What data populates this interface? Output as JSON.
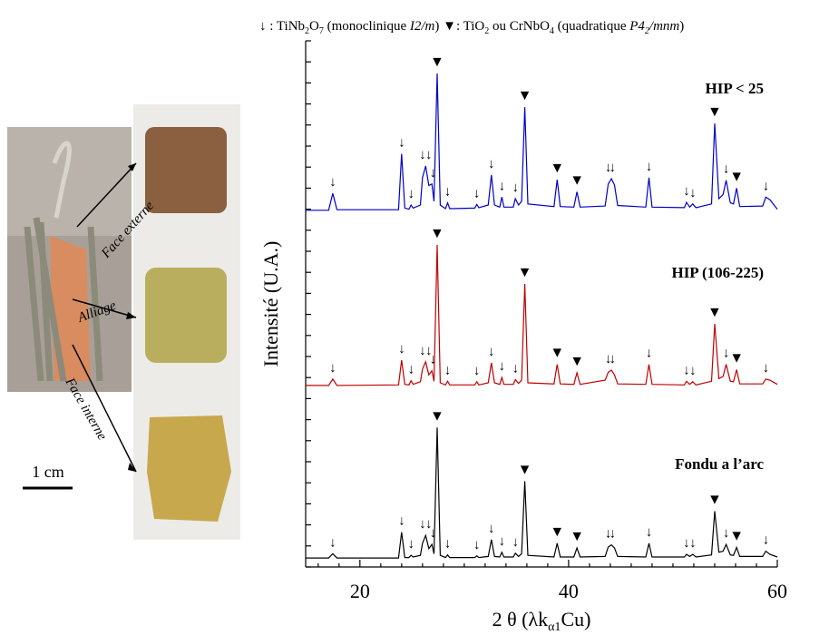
{
  "chart_data": {
    "type": "line",
    "note": [
      "↓ : TiNb",
      "2",
      "O",
      "7",
      " (monoclinique ",
      "I2/m",
      ") ▼: TiO",
      "2",
      " ou CrNbO",
      "4",
      " (quadratique ",
      "P4",
      "2",
      "/mnm",
      ")"
    ],
    "xlabel": [
      "2 θ (λk",
      "α1",
      "Cu)"
    ],
    "ylabel": "Intensité  (U.A.)",
    "xlim": [
      14.8,
      60
    ],
    "xticks": [
      20,
      40,
      60
    ],
    "xminorticks": [
      16,
      18,
      22,
      24,
      26,
      28,
      30,
      32,
      34,
      36,
      38,
      42,
      44,
      46,
      48,
      50,
      52,
      54,
      56,
      58
    ],
    "ylim": [
      0,
      100
    ],
    "yticks": [
      0,
      4,
      8,
      12,
      16,
      20,
      24,
      28,
      32,
      36,
      40,
      44,
      48,
      52,
      56,
      60,
      64,
      68,
      72,
      76,
      80,
      84,
      88,
      92,
      96,
      100
    ],
    "x": [
      14.8,
      17.0,
      17.4,
      17.8,
      23.7,
      24.0,
      24.3,
      24.7,
      24.9,
      25.1,
      25.8,
      26.0,
      26.3,
      26.6,
      26.9,
      27.1,
      27.4,
      27.7,
      28.2,
      28.4,
      28.6,
      31.0,
      31.2,
      31.4,
      32.3,
      32.6,
      32.9,
      33.4,
      33.6,
      33.8,
      34.7,
      34.9,
      35.2,
      35.5,
      35.8,
      36.1,
      38.6,
      38.9,
      39.2,
      40.5,
      40.8,
      41.1,
      43.5,
      43.8,
      44.1,
      44.4,
      44.7,
      47.4,
      47.7,
      48.0,
      51.1,
      51.3,
      51.6,
      51.9,
      52.2,
      53.7,
      54.0,
      54.4,
      54.8,
      55.1,
      55.5,
      55.8,
      56.1,
      56.4,
      58.6,
      58.9,
      59.3,
      60
    ],
    "series": [
      {
        "name": "HIP < 25",
        "color": "#0000c8",
        "values": [
          67.8,
          67.8,
          71.0,
          67.9,
          67.9,
          78.5,
          68.2,
          68.0,
          68.8,
          68.2,
          68.8,
          74.0,
          76.2,
          72.5,
          72.8,
          69.5,
          93.8,
          68.8,
          68.1,
          69.2,
          68.1,
          68.2,
          68.9,
          68.3,
          68.8,
          74.5,
          68.8,
          68.4,
          70.3,
          68.4,
          68.4,
          70.0,
          68.8,
          69.5,
          87.4,
          69.0,
          68.5,
          73.6,
          68.5,
          68.4,
          71.3,
          68.4,
          68.6,
          72.8,
          73.8,
          72.6,
          68.7,
          68.4,
          74.0,
          68.4,
          68.3,
          69.3,
          68.4,
          69.0,
          68.3,
          69.0,
          84.3,
          70.0,
          70.8,
          73.5,
          69.2,
          69.0,
          72.0,
          68.5,
          68.6,
          70.3,
          69.8,
          68.0
        ]
      },
      {
        "name": "HIP (106-225)",
        "color": "#c00000",
        "values": [
          34.5,
          34.5,
          35.7,
          34.5,
          34.6,
          39.3,
          34.7,
          34.6,
          35.4,
          34.7,
          35.2,
          37.6,
          39.0,
          36.5,
          37.3,
          35.3,
          61.2,
          35.0,
          34.6,
          35.3,
          34.6,
          34.6,
          35.2,
          34.6,
          35.0,
          38.8,
          35.0,
          34.7,
          36.0,
          34.7,
          34.7,
          35.6,
          34.9,
          35.5,
          53.8,
          35.0,
          34.8,
          38.5,
          34.8,
          34.7,
          36.9,
          34.7,
          35.5,
          37.0,
          37.4,
          36.5,
          34.8,
          34.7,
          38.5,
          34.7,
          34.6,
          35.3,
          34.7,
          35.2,
          34.6,
          35.3,
          46.2,
          35.8,
          36.2,
          38.5,
          35.3,
          35.2,
          37.5,
          34.8,
          34.8,
          35.7,
          35.5,
          34.7
        ]
      },
      {
        "name": "Fondu a l’arc",
        "color": "#000000",
        "values": [
          1.7,
          1.7,
          2.5,
          1.7,
          1.7,
          6.6,
          1.8,
          1.8,
          2.2,
          1.9,
          2.2,
          4.5,
          6.0,
          3.5,
          4.3,
          2.5,
          26.5,
          2.2,
          1.8,
          2.3,
          1.8,
          1.8,
          2.1,
          1.8,
          2.0,
          5.2,
          2.0,
          1.9,
          2.8,
          1.9,
          1.9,
          2.6,
          2.0,
          2.5,
          16.3,
          2.2,
          1.9,
          4.5,
          1.9,
          1.9,
          3.6,
          1.9,
          2.0,
          3.8,
          4.2,
          3.6,
          2.0,
          1.9,
          4.5,
          1.9,
          1.9,
          2.4,
          2.0,
          2.4,
          1.9,
          2.3,
          10.6,
          2.8,
          3.0,
          4.3,
          2.3,
          2.2,
          3.7,
          2.0,
          2.0,
          3.0,
          2.4,
          1.9
        ]
      }
    ],
    "peak_markers": [
      {
        "x": 17.4,
        "text": "↓"
      },
      {
        "x": 24.0,
        "text": "↓"
      },
      {
        "x": 24.9,
        "text": "↓"
      },
      {
        "x": 26.0,
        "text": "↓"
      },
      {
        "x": 26.6,
        "text": "↓"
      },
      {
        "x": 27.0,
        "text": "↓"
      },
      {
        "x": 27.4,
        "text": "▼"
      },
      {
        "x": 28.4,
        "text": "↓"
      },
      {
        "x": 31.2,
        "text": "↓"
      },
      {
        "x": 32.6,
        "text": "↓"
      },
      {
        "x": 33.6,
        "text": "↓"
      },
      {
        "x": 34.9,
        "text": "↓"
      },
      {
        "x": 35.8,
        "text": "▼"
      },
      {
        "x": 38.9,
        "text": "▼"
      },
      {
        "x": 40.8,
        "text": "▼"
      },
      {
        "x": 43.8,
        "text": "↓"
      },
      {
        "x": 44.2,
        "text": "↓"
      },
      {
        "x": 47.7,
        "text": "↓"
      },
      {
        "x": 51.3,
        "text": "↓"
      },
      {
        "x": 51.9,
        "text": "↓"
      },
      {
        "x": 54.0,
        "text": "▼"
      },
      {
        "x": 55.1,
        "text": "↓"
      },
      {
        "x": 56.1,
        "text": "▼"
      },
      {
        "x": 58.9,
        "text": "↓"
      }
    ]
  },
  "photo": {
    "labels": [
      "Face externe",
      "Alliage",
      "Face interne"
    ],
    "scale": "1 cm"
  }
}
